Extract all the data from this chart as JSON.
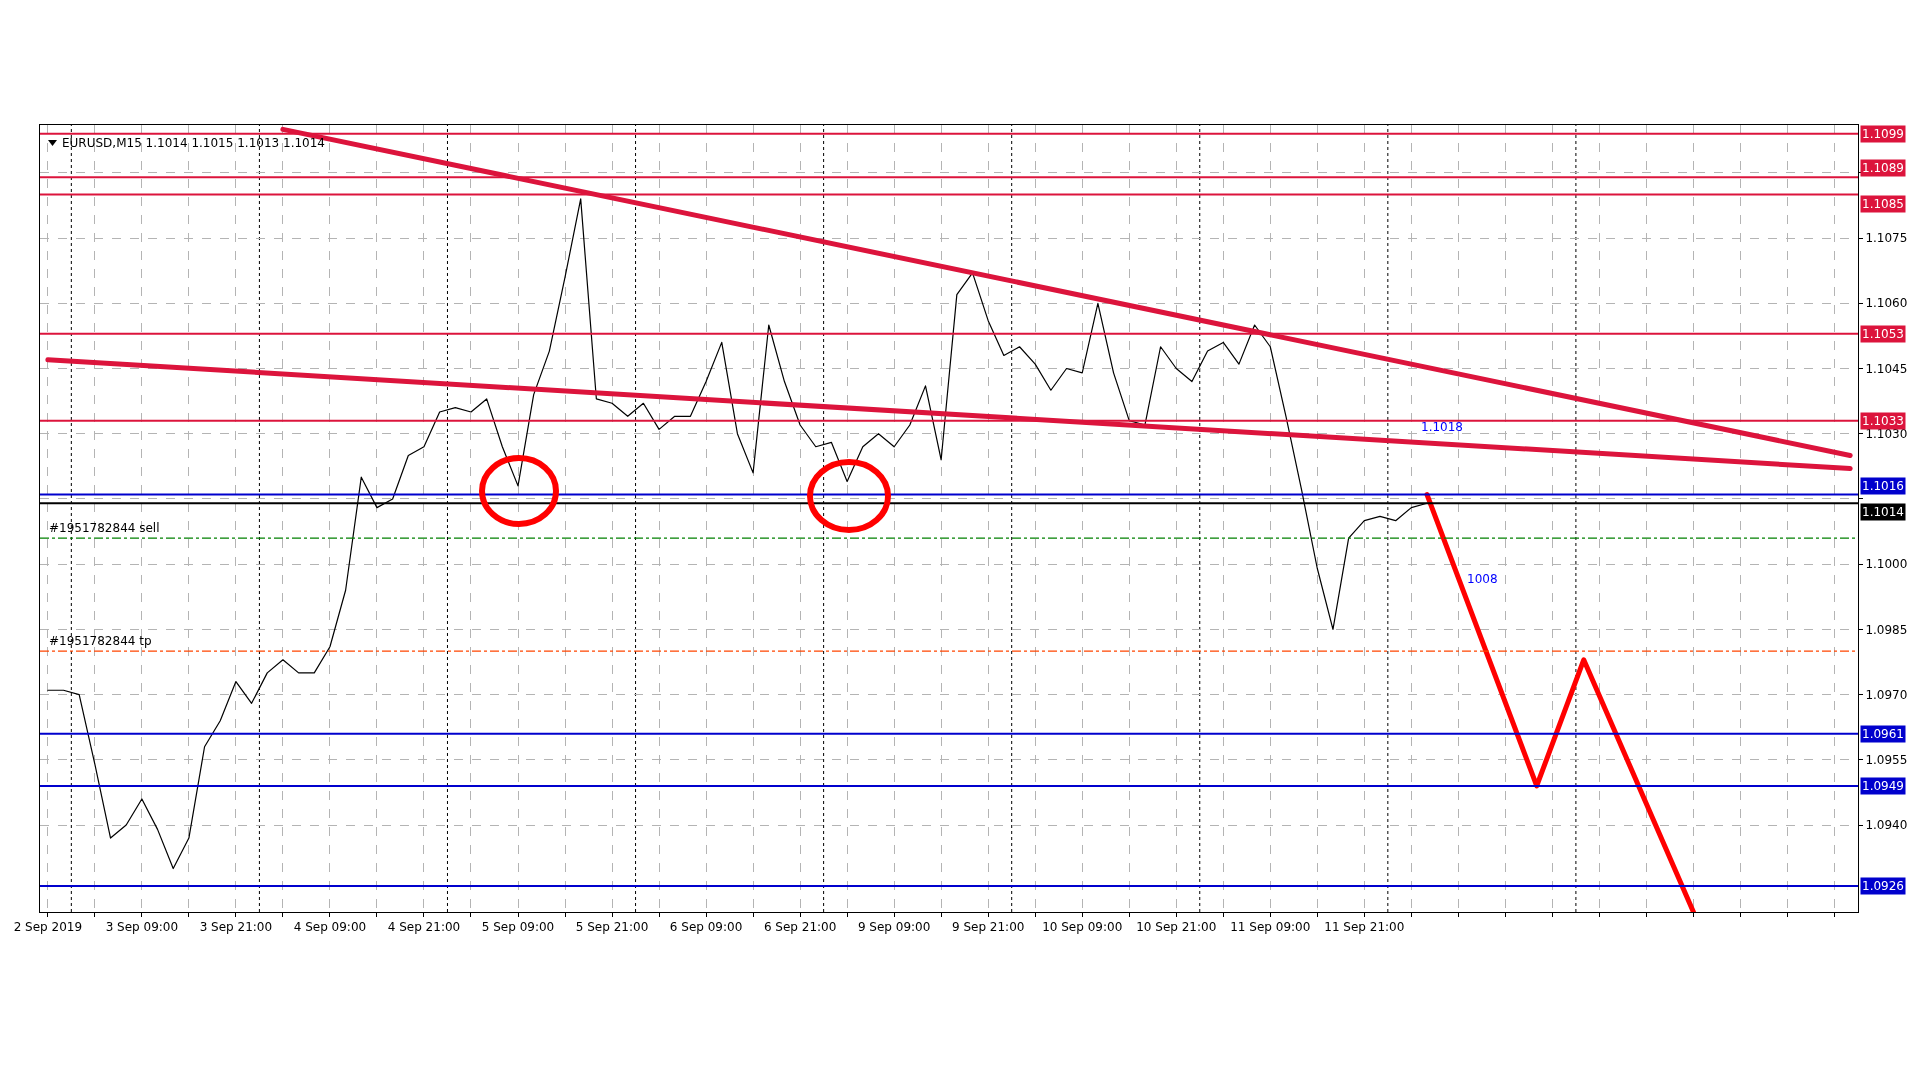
{
  "chart_data": {
    "type": "line",
    "title": "EURUSD,M15 1.1014 1.1015 1.1013 1.1014",
    "grid": true,
    "marker": "none",
    "categories": [
      "2 Sep 2019",
      null,
      null,
      null,
      null,
      null,
      "3 Sep 09:00",
      null,
      null,
      null,
      null,
      null,
      "3 Sep 21:00",
      null,
      null,
      null,
      null,
      null,
      "4 Sep 09:00",
      null,
      null,
      null,
      null,
      null,
      "4 Sep 21:00",
      null,
      null,
      null,
      null,
      null,
      "5 Sep 09:00",
      null,
      null,
      null,
      null,
      null,
      "5 Sep 21:00",
      null,
      null,
      null,
      null,
      null,
      "6 Sep 09:00",
      null,
      null,
      null,
      null,
      null,
      "6 Sep 21:00",
      null,
      null,
      null,
      null,
      null,
      "9 Sep 09:00",
      null,
      null,
      null,
      null,
      null,
      "9 Sep 21:00",
      null,
      null,
      null,
      null,
      null,
      "10 Sep 09:00",
      null,
      null,
      null,
      null,
      null,
      "10 Sep 21:00",
      null,
      null,
      null,
      null,
      null,
      "11 Sep 09:00",
      null,
      null,
      null,
      null,
      null,
      "11 Sep 21:00",
      null,
      null,
      null,
      null,
      null,
      null,
      null,
      null,
      null,
      null,
      null,
      null,
      null,
      null,
      null,
      null,
      null,
      null,
      null,
      null,
      null,
      null,
      null,
      null,
      null,
      null,
      null,
      null,
      null,
      null,
      null
    ],
    "ylim": [
      1.092,
      1.1101
    ],
    "yticks": [
      {
        "value": 1.094,
        "label": "1.0940"
      },
      1.0955,
      {
        "value": 1.097,
        "label": "1.0970"
      },
      1.0985,
      {
        "value": 1.1,
        "label": "1.1000"
      },
      {
        "value": 1.1015,
        "label": null
      },
      {
        "value": 1.103,
        "label": "1.1030"
      },
      1.1045,
      {
        "value": 1.106,
        "label": "1.1060"
      },
      1.1075,
      {
        "value": 1.109,
        "label": null
      }
    ],
    "series": [
      {
        "color": "#000000",
        "values": [
          1.0971,
          1.0971,
          1.097,
          1.0954,
          1.0937,
          1.094,
          1.0946,
          1.0939,
          1.093,
          1.0937,
          1.0958,
          1.0964,
          1.0973,
          1.0968,
          1.0975,
          1.0978,
          1.0975,
          1.0975,
          1.0981,
          1.0994,
          1.102,
          1.1013,
          1.1015,
          1.1025,
          1.1027,
          1.1035,
          1.1036,
          1.1035,
          1.1038,
          1.1027,
          1.1018,
          1.1039,
          1.1049,
          1.1066,
          1.1084,
          1.1038,
          1.1037,
          1.1034,
          1.1037,
          1.1031,
          1.1034,
          1.1034,
          1.1042,
          1.1051,
          1.103,
          1.1021,
          1.1055,
          1.1042,
          1.1032,
          1.1027,
          1.1028,
          1.1019,
          1.1027,
          1.103,
          1.1027,
          1.1032,
          1.1041,
          1.1024,
          1.1062,
          1.1067,
          1.1056,
          1.1048,
          1.105,
          1.1046,
          1.104,
          1.1045,
          1.1044,
          1.106,
          1.1044,
          1.1033,
          1.1032,
          1.105,
          1.1045,
          1.1042,
          1.1049,
          1.1051,
          1.1046,
          1.1055,
          1.105,
          1.1034,
          1.1017,
          1.0999,
          1.0985,
          1.1006,
          1.101,
          1.1011,
          1.101,
          1.1013,
          1.1014,
          null,
          null,
          null,
          null,
          null,
          null,
          null,
          null,
          null,
          null,
          null,
          null,
          null,
          null,
          null,
          null,
          null,
          null,
          null,
          null,
          null,
          null,
          null,
          null,
          null,
          null,
          null
        ]
      },
      {
        "type": "line",
        "color": "#dc143c",
        "values": [
          null,
          null,
          null,
          null,
          null,
          null,
          null,
          null,
          null,
          null,
          null,
          null,
          null,
          null,
          null,
          1.11,
          null,
          null,
          null,
          null,
          null,
          null,
          null,
          null,
          null,
          null,
          null,
          null,
          null,
          null,
          null,
          null,
          null,
          null,
          null,
          null,
          null,
          null,
          null,
          null,
          null,
          null,
          null,
          null,
          null,
          null,
          null,
          null,
          null,
          null,
          null,
          null,
          null,
          null,
          null,
          null,
          null,
          null,
          null,
          null,
          null,
          null,
          null,
          null,
          null,
          null,
          null,
          null,
          null,
          null,
          null,
          null,
          null,
          null,
          null,
          null,
          null,
          null,
          null,
          null,
          null,
          null,
          null,
          null,
          null,
          null,
          null,
          null,
          null,
          null,
          null,
          null,
          null,
          null,
          null,
          null,
          null,
          null,
          null,
          null,
          null,
          null,
          null,
          null,
          null,
          null,
          null,
          null,
          null,
          null,
          null,
          null,
          null,
          null,
          null,
          1.1025
        ]
      },
      {
        "type": "line",
        "color": "#dc143c",
        "values": [
          1.1047,
          null,
          null,
          null,
          null,
          null,
          null,
          null,
          null,
          null,
          null,
          null,
          null,
          null,
          null,
          null,
          null,
          null,
          null,
          null,
          null,
          null,
          null,
          null,
          null,
          null,
          null,
          null,
          null,
          null,
          null,
          null,
          null,
          null,
          null,
          null,
          null,
          null,
          null,
          null,
          null,
          null,
          null,
          null,
          null,
          null,
          null,
          null,
          null,
          null,
          null,
          null,
          null,
          null,
          null,
          null,
          null,
          null,
          null,
          null,
          null,
          null,
          null,
          null,
          null,
          null,
          null,
          null,
          null,
          null,
          null,
          null,
          null,
          null,
          null,
          null,
          null,
          null,
          null,
          null,
          null,
          null,
          null,
          null,
          null,
          null,
          null,
          null,
          null,
          null,
          null,
          null,
          null,
          null,
          null,
          null,
          null,
          null,
          null,
          null,
          null,
          null,
          null,
          null,
          null,
          null,
          null,
          null,
          null,
          null,
          null,
          null,
          null,
          null,
          null,
          1.1022
        ]
      },
      {
        "type": "line",
        "color": "#ff0000",
        "values": [
          null,
          null,
          null,
          null,
          null,
          null,
          null,
          null,
          null,
          null,
          null,
          null,
          null,
          null,
          null,
          null,
          null,
          null,
          null,
          null,
          null,
          null,
          null,
          null,
          null,
          null,
          null,
          null,
          null,
          null,
          null,
          null,
          null,
          null,
          null,
          null,
          null,
          null,
          null,
          null,
          null,
          null,
          null,
          null,
          null,
          null,
          null,
          null,
          null,
          null,
          null,
          null,
          null,
          null,
          null,
          null,
          null,
          null,
          null,
          null,
          null,
          null,
          null,
          null,
          null,
          null,
          null,
          null,
          null,
          null,
          null,
          null,
          null,
          null,
          null,
          null,
          null,
          null,
          null,
          null,
          null,
          null,
          null,
          null,
          null,
          null,
          null,
          null,
          1.1016,
          null,
          null,
          null,
          null,
          null,
          null,
          1.0949,
          null,
          null,
          1.0978,
          null,
          null,
          null,
          null,
          null,
          null,
          1.092,
          null,
          null,
          null,
          null,
          null,
          null,
          null,
          null,
          null,
          null
        ]
      }
    ],
    "ref_lines": [
      {
        "axis": "y",
        "value": 1.1099,
        "label": "1.1099",
        "color": "#dc143c"
      },
      {
        "axis": "y",
        "value": 1.1089,
        "label": "1.1089",
        "color": "#dc143c"
      },
      {
        "axis": "y",
        "value": 1.1085,
        "label": "1.1085",
        "color": "#dc143c"
      },
      {
        "axis": "y",
        "value": 1.1053,
        "label": "1.1053",
        "color": "#dc143c"
      },
      {
        "axis": "y",
        "value": 1.1033,
        "label": "1.1033",
        "color": "#dc143c"
      },
      {
        "axis": "y",
        "value": 1.1014,
        "label": "1.1014",
        "color": "#000000"
      },
      {
        "axis": "y",
        "value": 1.1016,
        "label": "1.1016",
        "color": "#0000cd"
      },
      {
        "axis": "y",
        "value": 1.0961,
        "label": "1.0961",
        "color": "#0000cd"
      },
      {
        "axis": "y",
        "value": 1.0949,
        "label": "1.0949",
        "color": "#0000cd"
      },
      {
        "axis": "y",
        "value": 1.0926,
        "label": "1.0926",
        "color": "#0000cd"
      },
      {
        "axis": "y",
        "value": 1.1006,
        "label": "#1951782844 sell",
        "color": "#008000",
        "line_style": "dashed"
      },
      {
        "axis": "y",
        "value": 1.098,
        "label": "#1951782844 tp",
        "color": "#ff4500",
        "line_style": "dashed"
      }
    ],
    "annotations": [
      "1.1018",
      "1008"
    ]
  }
}
